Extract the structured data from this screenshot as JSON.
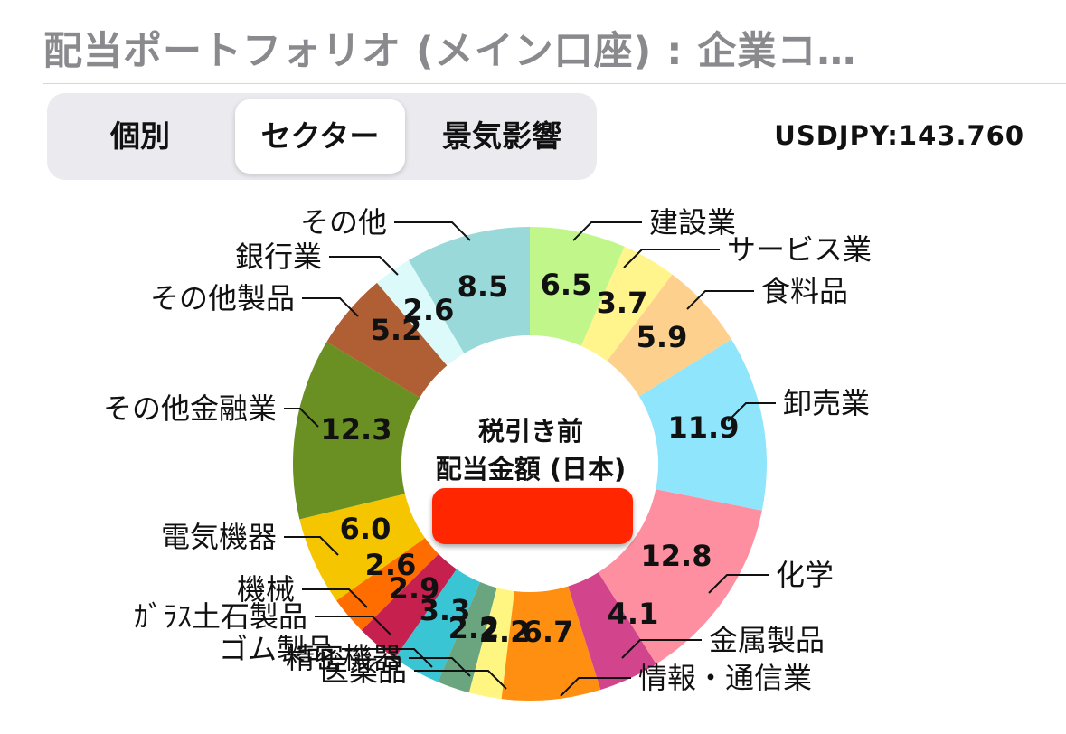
{
  "header": {
    "title": "配当ポートフォリオ (メイン口座) : 企業コ…",
    "rate": "USDJPY:143.760"
  },
  "tabs": [
    {
      "label": "個別",
      "active": false
    },
    {
      "label": "セクター",
      "active": true
    },
    {
      "label": "景気影響",
      "active": false
    }
  ],
  "chart_data": {
    "type": "pie",
    "center_label_line1": "税引き前",
    "center_label_line2": "配当金額 (日本)",
    "categories": [
      "建設業",
      "サービス業",
      "食料品",
      "卸売業",
      "化学",
      "金属製品",
      "情報・通信業",
      "医薬品",
      "精密機器",
      "ゴム製品",
      "ｶﾞﾗｽ土石製品",
      "機械",
      "電気機器",
      "その他金融業",
      "その他製品",
      "銀行業",
      "その他"
    ],
    "values": [
      6.5,
      3.7,
      5.9,
      11.9,
      12.8,
      4.1,
      6.7,
      2.2,
      2.2,
      3.3,
      2.9,
      2.6,
      6.0,
      12.3,
      5.2,
      2.6,
      8.5
    ],
    "value_labels": [
      "6.5",
      "3.7",
      "5.9",
      "11.9",
      "12.8",
      "4.1",
      "6.7",
      "2.2",
      "2.2",
      "3.3",
      "2.9",
      "2.6",
      "6.0",
      "12.3",
      "5.2",
      "2.6",
      "8.5"
    ],
    "colors": [
      "#c1f78a",
      "#fff58c",
      "#fed08d",
      "#8fe5fc",
      "#fe8fa1",
      "#d2448c",
      "#ff8f10",
      "#fff681",
      "#6aa580",
      "#3ac5d5",
      "#c5204e",
      "#ff6d00",
      "#f5c500",
      "#6a8f22",
      "#b05e33",
      "#dcfafa",
      "#99d9d9"
    ],
    "legend": "labels-outside"
  }
}
